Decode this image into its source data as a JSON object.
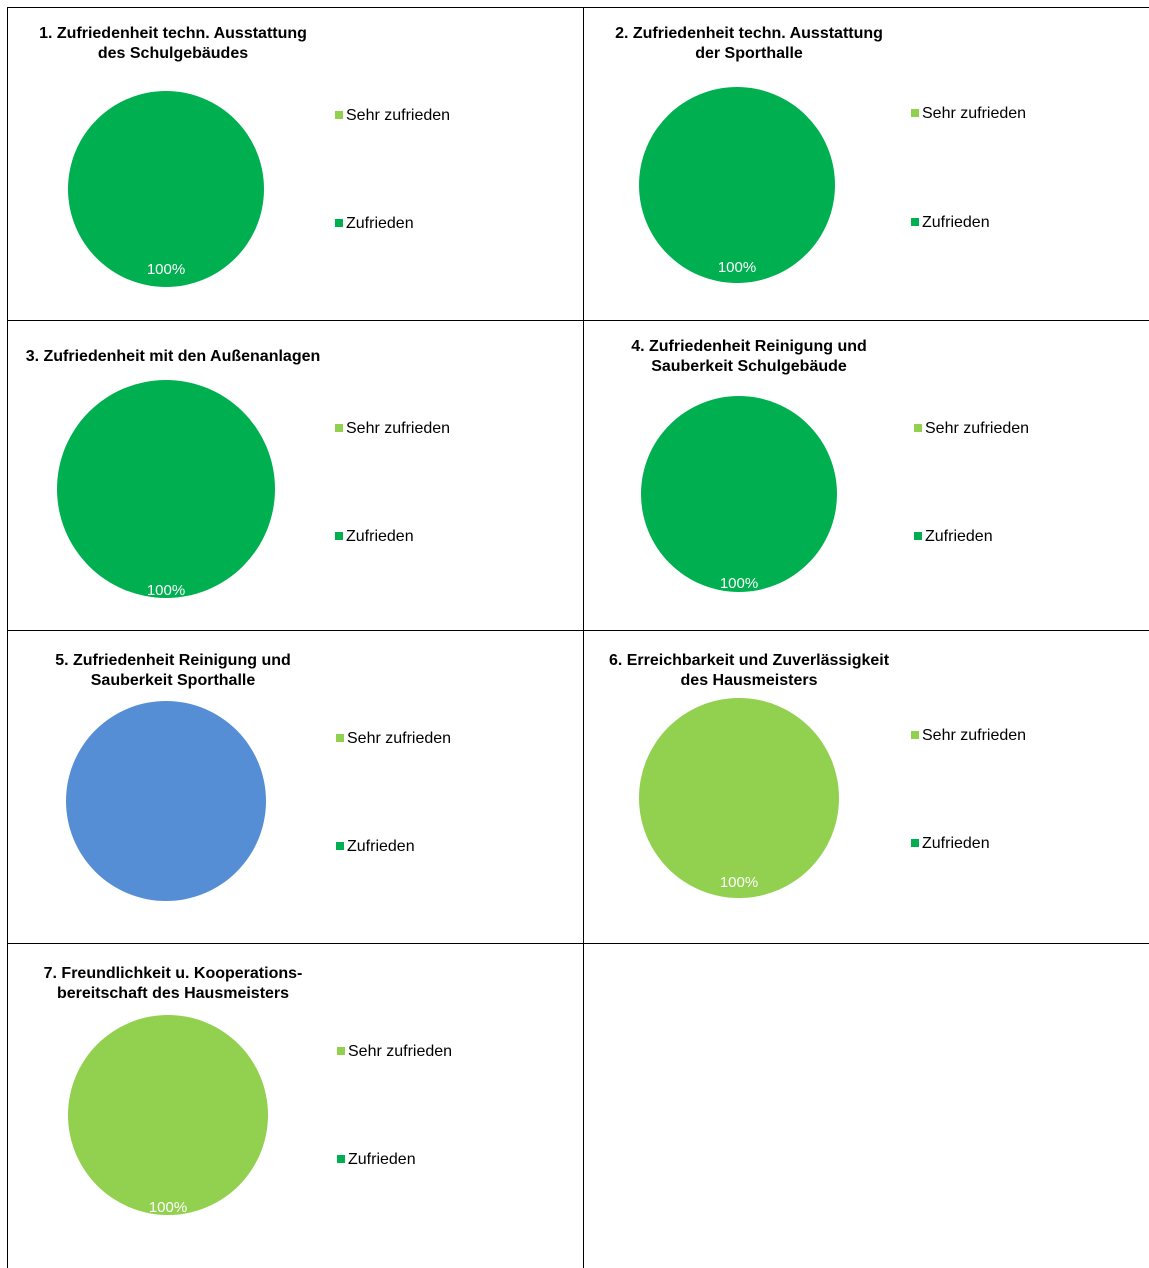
{
  "colors": {
    "sehr_zufrieden": "#92d050",
    "zufrieden": "#00b050",
    "blue": "#558ed5",
    "label": "#ffffff"
  },
  "legend": {
    "sehr_zufrieden": "Sehr zufrieden",
    "zufrieden": "Zufrieden"
  },
  "chart_data": [
    {
      "type": "pie",
      "title": [
        "1. Zufriedenheit techn. Ausstattung",
        "des Schulgebäudes"
      ],
      "categories": [
        "Sehr zufrieden",
        "Zufrieden"
      ],
      "values": [
        0,
        100
      ],
      "fill": "#00b050",
      "data_label": "100%"
    },
    {
      "type": "pie",
      "title": [
        "2. Zufriedenheit techn. Ausstattung",
        "der Sporthalle"
      ],
      "categories": [
        "Sehr zufrieden",
        "Zufrieden"
      ],
      "values": [
        0,
        100
      ],
      "fill": "#00b050",
      "data_label": "100%"
    },
    {
      "type": "pie",
      "title": [
        "3. Zufriedenheit mit den Außenanlagen"
      ],
      "categories": [
        "Sehr zufrieden",
        "Zufrieden"
      ],
      "values": [
        0,
        100
      ],
      "fill": "#00b050",
      "data_label": "100%"
    },
    {
      "type": "pie",
      "title": [
        "4. Zufriedenheit Reinigung und",
        "Sauberkeit Schulgebäude"
      ],
      "categories": [
        "Sehr zufrieden",
        "Zufrieden"
      ],
      "values": [
        0,
        100
      ],
      "fill": "#00b050",
      "data_label": "100%"
    },
    {
      "type": "pie",
      "title": [
        "5. Zufriedenheit Reinigung und",
        "Sauberkeit Sporthalle"
      ],
      "categories": [
        "Sehr zufrieden",
        "Zufrieden"
      ],
      "values": [
        0,
        0
      ],
      "fill": "#558ed5",
      "data_label": ""
    },
    {
      "type": "pie",
      "title": [
        "6. Erreichbarkeit und Zuverlässigkeit",
        "des Hausmeisters"
      ],
      "categories": [
        "Sehr zufrieden",
        "Zufrieden"
      ],
      "values": [
        100,
        0
      ],
      "fill": "#92d050",
      "data_label": "100%"
    },
    {
      "type": "pie",
      "title": [
        "7. Freundlichkeit u. Kooperations-",
        "bereitschaft des Hausmeisters"
      ],
      "categories": [
        "Sehr zufrieden",
        "Zufrieden"
      ],
      "values": [
        100,
        0
      ],
      "fill": "#92d050",
      "data_label": "100%"
    }
  ]
}
